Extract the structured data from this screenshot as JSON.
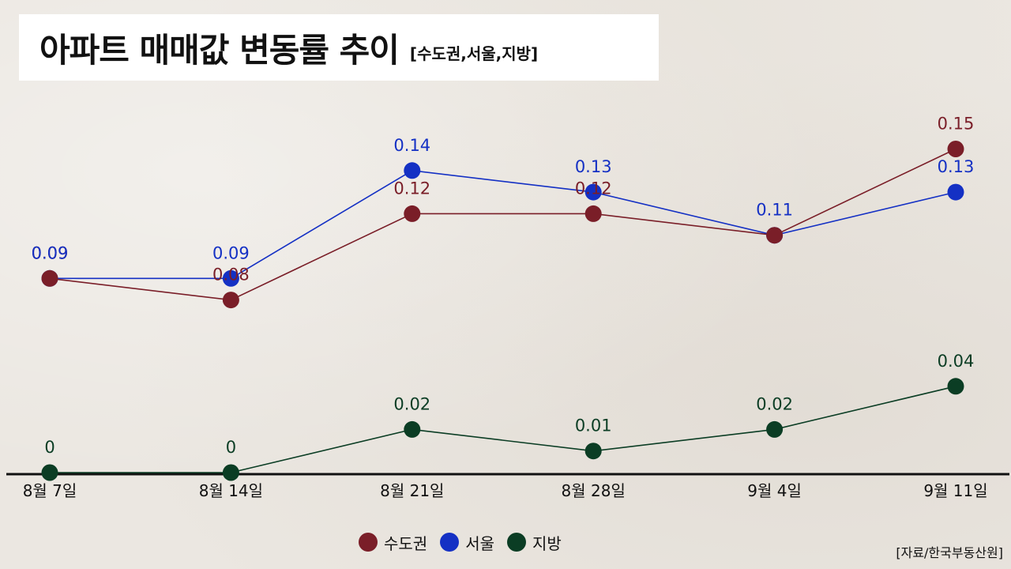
{
  "title": {
    "main": "아파트 매매값 변동률 추이",
    "sub": "[수도권,서울,지방]"
  },
  "source": "[자료/한국부동산원]",
  "chart_data": {
    "type": "line",
    "categories": [
      "8월 7일",
      "8월 14일",
      "8월 21일",
      "8월 28일",
      "9월 4일",
      "9월 11일"
    ],
    "series": [
      {
        "name": "수도권",
        "color": "#7a1e28",
        "values": [
          0.09,
          0.08,
          0.12,
          0.12,
          0.11,
          0.15
        ]
      },
      {
        "name": "서울",
        "color": "#1430c4",
        "values": [
          0.09,
          0.09,
          0.14,
          0.13,
          0.11,
          0.13
        ]
      },
      {
        "name": "지방",
        "color": "#0b3d24",
        "values": [
          0,
          0,
          0.02,
          0.01,
          0.02,
          0.04
        ]
      }
    ],
    "data_labels": [
      [
        "0.09",
        "0.08",
        "0.12",
        "0.12",
        "",
        "0.15"
      ],
      [
        "0.09",
        "0.09",
        "0.14",
        "0.13",
        "0.11",
        "0.13"
      ],
      [
        "0",
        "0",
        "0.02",
        "0.01",
        "0.02",
        "0.04"
      ]
    ],
    "ylim": [
      0,
      0.15
    ],
    "grid": false,
    "legend_position": "bottom-center"
  }
}
